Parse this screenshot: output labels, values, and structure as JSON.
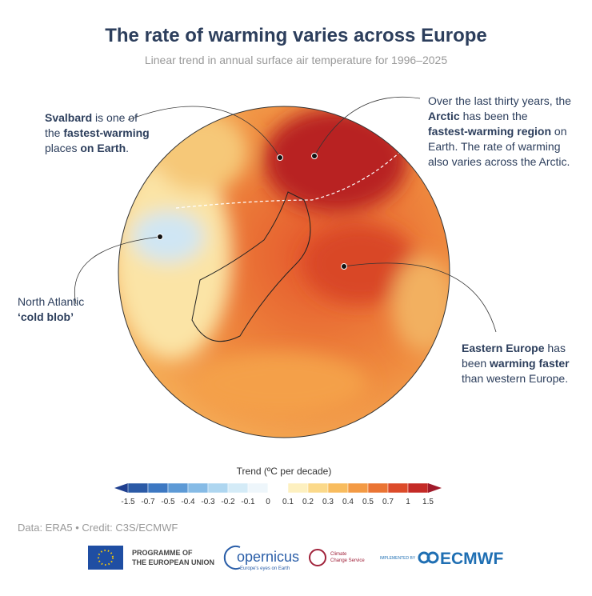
{
  "header": {
    "title": "The rate of warming varies across Europe",
    "subtitle": "Linear trend in annual surface air temperature for 1996–2025"
  },
  "annotations": [
    {
      "lines": [
        [
          {
            "text": "Svalbard",
            "bold": true
          },
          {
            "text": " is one of",
            "bold": false
          }
        ],
        [
          {
            "text": "the ",
            "bold": false
          },
          {
            "text": "fastest-warming",
            "bold": true
          }
        ],
        [
          {
            "text": "places ",
            "bold": false
          },
          {
            "text": "on Earth",
            "bold": true
          },
          {
            "text": ".",
            "bold": false
          }
        ]
      ]
    },
    {
      "lines": [
        [
          {
            "text": "Over the last thirty years, the",
            "bold": false
          }
        ],
        [
          {
            "text": "Arctic",
            "bold": true
          },
          {
            "text": " has been the",
            "bold": false
          }
        ],
        [
          {
            "text": "fastest-warming region",
            "bold": true
          },
          {
            "text": " on",
            "bold": false
          }
        ],
        [
          {
            "text": "Earth. The rate of warming",
            "bold": false
          }
        ],
        [
          {
            "text": "also varies across the Arctic.",
            "bold": false
          }
        ]
      ]
    },
    {
      "lines": [
        [
          {
            "text": "North Atlantic",
            "bold": false
          }
        ],
        [
          {
            "text": "‘cold blob’",
            "bold": true
          }
        ]
      ]
    },
    {
      "lines": [
        [
          {
            "text": "Eastern Europe",
            "bold": true
          },
          {
            "text": " has",
            "bold": false
          }
        ],
        [
          {
            "text": "been ",
            "bold": false
          },
          {
            "text": "warming faster",
            "bold": true
          }
        ],
        [
          {
            "text": "than western Europe.",
            "bold": false
          }
        ]
      ]
    }
  ],
  "colorbar": {
    "label": "Trend (ºC per decade)",
    "ticks": [
      -1.5,
      -0.7,
      -0.5,
      -0.4,
      -0.3,
      -0.2,
      -0.1,
      0,
      0.1,
      0.2,
      0.3,
      0.4,
      0.5,
      0.7,
      1,
      1.5
    ],
    "colors": [
      "#1f3f8f",
      "#2b5aa6",
      "#3d78c2",
      "#5d9ad6",
      "#86bbe6",
      "#aed6f0",
      "#d4ebf7",
      "#eef6fb",
      "#ffffff",
      "#fdf0c0",
      "#fbd98a",
      "#f8bc5e",
      "#f39a44",
      "#ea7433",
      "#dc4b2a",
      "#c42a26",
      "#a01a2a"
    ]
  },
  "credit": "Data: ERA5 • Credit: C3S/ECMWF",
  "logos": {
    "eu": [
      "PROGRAMME OF",
      "THE EUROPEAN UNION"
    ],
    "copernicus": "opernicus",
    "copernicus_tagline": "Europe's eyes on Earth",
    "c3s": [
      "Climate",
      "Change Service"
    ],
    "implemented": "IMPLEMENTED BY",
    "ecmwf": "ECMWF"
  }
}
